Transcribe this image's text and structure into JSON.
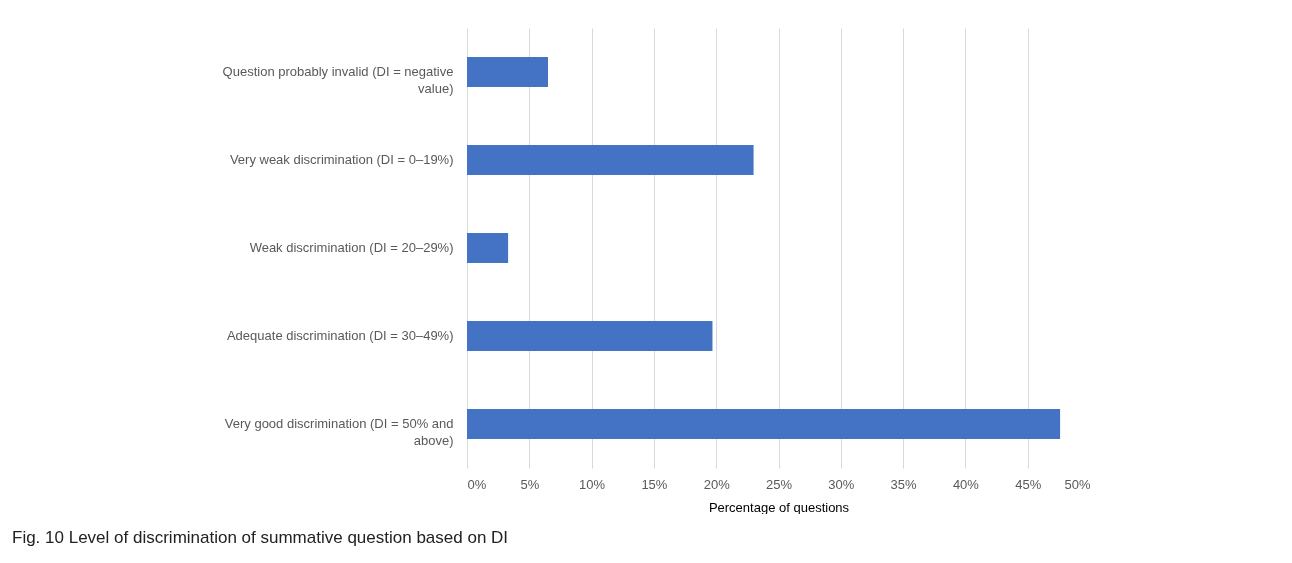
{
  "chart_data": {
    "type": "bar",
    "orientation": "horizontal",
    "xlabel": "Percentage of questions",
    "categories": [
      "Question probably invalid (DI = negative value)",
      "Very weak discrimination (DI = 0–19%)",
      "Weak discrimination (DI = 20–29%)",
      "Adequate discrimination (DI = 30–49%)",
      "Very good discrimination (DI = 50% and above)"
    ],
    "values": [
      6.5,
      23,
      3.3,
      19.7,
      47.6
    ],
    "color": "#4472c4",
    "xlim": [
      0,
      50
    ],
    "xticks": [
      {
        "value": 0,
        "label": "0%"
      },
      {
        "value": 5,
        "label": "5%"
      },
      {
        "value": 10,
        "label": "10%"
      },
      {
        "value": 15,
        "label": "15%"
      },
      {
        "value": 20,
        "label": "20%"
      },
      {
        "value": 25,
        "label": "25%"
      },
      {
        "value": 30,
        "label": "30%"
      },
      {
        "value": 35,
        "label": "35%"
      },
      {
        "value": 40,
        "label": "40%"
      },
      {
        "value": 45,
        "label": "45%"
      },
      {
        "value": 50,
        "label": "50%"
      }
    ],
    "grid": "x",
    "annotations": [
      "Fig. 10 Level of discrimination of summative question based on DI"
    ]
  }
}
